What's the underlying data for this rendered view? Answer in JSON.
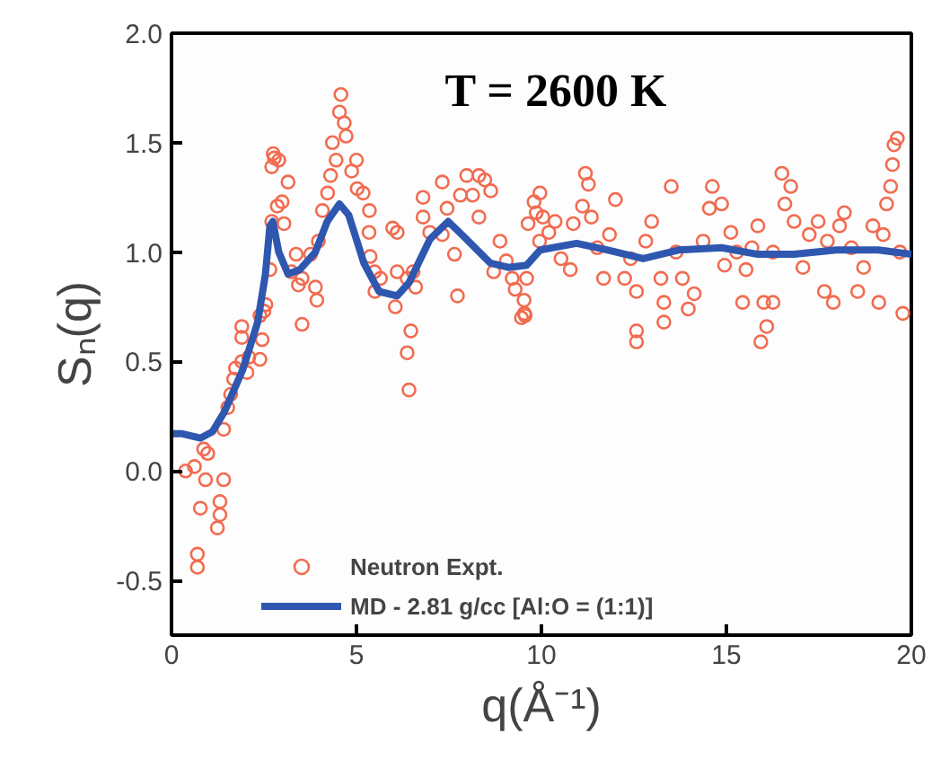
{
  "chart_data": {
    "type": "scatter",
    "xlabel": "q(Å⁻¹)",
    "ylabel": "Sₙ(q)",
    "annotations": [
      "T = 2600 K"
    ],
    "xlim": [
      0,
      20
    ],
    "ylim": [
      -0.75,
      2.0
    ],
    "xticks": [
      0,
      5,
      10,
      15,
      20
    ],
    "yticks": [
      {
        "value": -0.5,
        "label": "-0.5"
      },
      {
        "value": 0,
        "label": "0.0"
      },
      {
        "value": 0.5,
        "label": "0.5"
      },
      {
        "value": 1,
        "label": "1.0"
      },
      {
        "value": 1.5,
        "label": "1.5"
      },
      {
        "value": 2,
        "label": "2.0"
      }
    ],
    "grid": false,
    "legend": "bottom",
    "series": [
      {
        "name": "Neutron Expt.",
        "marker": "circle",
        "color": "#f26b50",
        "x": [
          0.38,
          0.62,
          0.87,
          0.98,
          0.78,
          0.92,
          0.7,
          0.7,
          1.24,
          1.31,
          1.31,
          1.41,
          1.41,
          1.52,
          1.6,
          1.73,
          1.68,
          1.9,
          2.04,
          2.09,
          1.9,
          1.9,
          2.39,
          2.45,
          2.39,
          2.5,
          2.55,
          2.66,
          2.71,
          2.75,
          2.78,
          2.71,
          2.9,
          2.99,
          2.86,
          3.04,
          3.15,
          3.24,
          3.37,
          3.43,
          3.53,
          3.53,
          3.76,
          3.89,
          3.93,
          3.97,
          4.08,
          4.22,
          4.3,
          4.35,
          4.45,
          4.54,
          4.58,
          4.67,
          4.72,
          4.87,
          5.0,
          5.02,
          5.18,
          5.35,
          5.34,
          5.37,
          5.49,
          5.5,
          5.65,
          5.98,
          6.1,
          6.05,
          6.1,
          6.37,
          6.47,
          6.37,
          6.42,
          6.53,
          6.6,
          6.8,
          6.8,
          6.98,
          7.32,
          7.32,
          7.45,
          7.73,
          7.65,
          7.81,
          7.98,
          8.14,
          8.31,
          8.47,
          8.63,
          8.71,
          8.31,
          8.88,
          9.05,
          9.21,
          9.29,
          9.46,
          9.54,
          9.86,
          9.95,
          9.53,
          9.56,
          9.6,
          9.64,
          9.8,
          9.96,
          10.04,
          10.2,
          10.37,
          10.53,
          10.78,
          10.86,
          11.11,
          11.19,
          11.27,
          11.35,
          11.51,
          11.68,
          11.84,
          12.0,
          12.25,
          12.41,
          12.57,
          12.57,
          12.57,
          12.82,
          12.98,
          13.23,
          13.31,
          13.31,
          13.51,
          13.64,
          13.81,
          13.97,
          14.13,
          14.37,
          14.54,
          14.62,
          14.87,
          14.95,
          15.12,
          15.28,
          15.44,
          15.53,
          15.69,
          15.85,
          15.93,
          16.09,
          16.01,
          16.26,
          16.26,
          16.5,
          16.58,
          16.74,
          16.83,
          17.07,
          17.24,
          17.48,
          17.65,
          17.73,
          17.89,
          18.06,
          18.19,
          18.38,
          18.55,
          18.71,
          18.96,
          19.12,
          19.24,
          19.33,
          19.44,
          19.49,
          19.53,
          19.62,
          19.69,
          19.77
        ],
        "values": [
          0.0,
          0.02,
          0.1,
          0.08,
          -0.17,
          -0.04,
          -0.38,
          -0.44,
          -0.26,
          -0.2,
          -0.14,
          -0.04,
          0.19,
          0.29,
          0.35,
          0.47,
          0.42,
          0.5,
          0.45,
          0.52,
          0.66,
          0.61,
          0.51,
          0.6,
          0.71,
          0.73,
          0.76,
          0.92,
          1.14,
          1.45,
          1.43,
          1.39,
          1.42,
          1.23,
          1.21,
          1.13,
          1.32,
          0.91,
          0.99,
          0.85,
          0.67,
          0.88,
          0.99,
          0.84,
          0.78,
          1.05,
          1.19,
          1.27,
          1.35,
          1.5,
          1.42,
          1.64,
          1.72,
          1.59,
          1.53,
          1.37,
          1.42,
          1.29,
          1.27,
          1.19,
          1.09,
          0.98,
          0.91,
          0.82,
          0.88,
          1.11,
          1.09,
          0.75,
          0.91,
          0.88,
          0.64,
          0.54,
          0.37,
          0.91,
          0.84,
          1.25,
          1.16,
          1.09,
          1.32,
          1.08,
          1.2,
          0.8,
          0.99,
          1.26,
          1.35,
          1.26,
          1.35,
          1.33,
          1.28,
          0.91,
          1.16,
          1.05,
          0.96,
          0.88,
          0.83,
          0.7,
          0.72,
          1.18,
          1.05,
          0.78,
          0.71,
          0.88,
          1.13,
          1.23,
          1.27,
          1.16,
          1.09,
          1.14,
          0.97,
          0.92,
          1.13,
          1.21,
          1.36,
          1.31,
          1.16,
          1.02,
          0.88,
          1.08,
          1.24,
          0.88,
          0.97,
          0.82,
          0.64,
          0.59,
          1.05,
          1.14,
          0.88,
          0.77,
          0.68,
          1.3,
          1.0,
          0.88,
          0.74,
          0.81,
          1.05,
          1.2,
          1.3,
          1.22,
          0.94,
          1.09,
          1.0,
          0.77,
          0.92,
          1.02,
          1.12,
          0.59,
          0.66,
          0.77,
          0.77,
          1.0,
          1.36,
          1.22,
          1.3,
          1.14,
          0.93,
          1.08,
          1.14,
          0.82,
          1.05,
          0.77,
          1.12,
          1.18,
          1.02,
          0.82,
          0.93,
          1.12,
          0.77,
          1.08,
          1.22,
          1.3,
          1.4,
          1.49,
          1.52,
          1.0,
          0.72
        ]
      },
      {
        "name": "MD - 2.81 g/cc [Al:O = (1:1)]",
        "type": "line",
        "line_style": "solid",
        "color": "#2f57b0",
        "x": [
          0,
          0.29,
          0.78,
          1.11,
          1.43,
          1.92,
          2.33,
          2.54,
          2.66,
          2.74,
          2.9,
          3.15,
          3.47,
          3.89,
          4.21,
          4.54,
          4.79,
          5.2,
          5.61,
          6.1,
          6.42,
          6.99,
          7.48,
          7.97,
          8.62,
          9.11,
          9.6,
          9.97,
          10.95,
          11.77,
          12.75,
          13.73,
          14.87,
          15.85,
          16.83,
          17.97,
          19.11,
          20
        ],
        "values": [
          0.17,
          0.17,
          0.15,
          0.18,
          0.27,
          0.46,
          0.68,
          0.9,
          1.12,
          1.14,
          1.0,
          0.9,
          0.92,
          1.0,
          1.14,
          1.22,
          1.17,
          0.95,
          0.82,
          0.8,
          0.86,
          1.06,
          1.14,
          1.06,
          0.95,
          0.93,
          0.94,
          1.01,
          1.04,
          1.01,
          0.97,
          1.01,
          1.02,
          0.99,
          0.99,
          1.01,
          1.01,
          0.99
        ]
      }
    ]
  }
}
